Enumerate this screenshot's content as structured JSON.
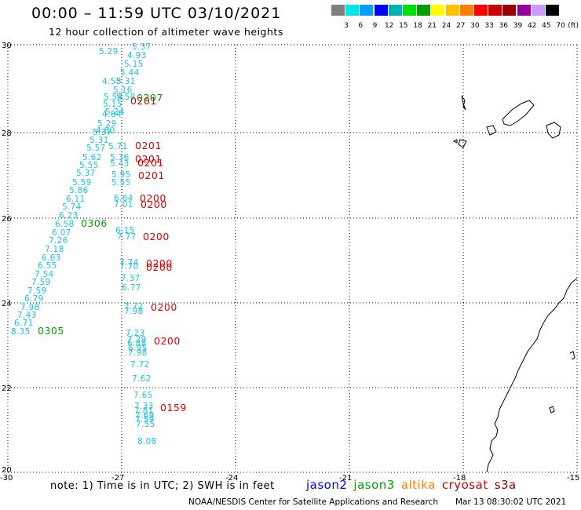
{
  "header": {
    "title": "00:00 – 11:59 UTC 03/10/2021",
    "subtitle": "12 hour collection of altimeter wave heights"
  },
  "colorbar": {
    "labels": [
      "3",
      "6",
      "9",
      "12",
      "15",
      "18",
      "21",
      "24",
      "27",
      "30",
      "33",
      "36",
      "39",
      "42",
      "45",
      "70",
      "(ft)"
    ],
    "colors": [
      "#7f7f7f",
      "#00e5e5",
      "#00a2ff",
      "#0000ff",
      "#00b3b3",
      "#00e000",
      "#00a000",
      "#ffff00",
      "#ffc000",
      "#ff8000",
      "#ff0000",
      "#cc0000",
      "#990000",
      "#990099",
      "#cc99ff",
      "#000000"
    ]
  },
  "map": {
    "lon_range": [
      -30,
      -15
    ],
    "lat_range": [
      20,
      30
    ],
    "x_ticks": [
      "-30",
      "-27",
      "-24",
      "-21",
      "-18",
      "-15"
    ],
    "y_ticks": [
      "20",
      "22",
      "24",
      "26",
      "28",
      "30"
    ]
  },
  "wave_heights": {
    "left_track": [
      "5.37",
      "5.29",
      "4.93",
      "5.15",
      "5.44",
      "4.58",
      "5.31",
      "5.16",
      "5.54",
      "5.58",
      "5.15",
      "5.24",
      "4.84",
      "5.29",
      "4.80",
      "5.37",
      "5.31",
      "5.57",
      "5.62",
      "5.55",
      "5.37",
      "5.59",
      "5.86",
      "6.11",
      "5.74",
      "6.23",
      "6.58",
      "6.07",
      "7.26",
      "7.18",
      "6.63",
      "6.55",
      "7.54",
      "7.59",
      "7.59",
      "6.79",
      "7.98",
      "7.43",
      "6.71",
      "8.35"
    ],
    "right_track": [
      "5.71",
      "5.36",
      "5.43",
      "5.95",
      "5.55",
      "6.64",
      "7.01",
      "6.15",
      "7.77",
      "7.74",
      "7.70",
      "7.37",
      "6.77",
      "7.72",
      "7.98",
      "7.23",
      "7.29",
      "6.88",
      "6.95",
      "7.98",
      "7.72",
      "7.62",
      "7.65",
      "7.33",
      "7.81",
      "7.69",
      "7.59",
      "7.55",
      "8.08"
    ]
  },
  "time_labels": {
    "red": [
      "0201",
      "0201",
      "0201",
      "0201",
      "0201",
      "0200",
      "0200",
      "0200",
      "0200",
      "0200",
      "0200",
      "0200",
      "0159"
    ],
    "green": [
      "0207",
      "0306",
      "0305"
    ]
  },
  "footer": {
    "note": "note: 1) Time is in UTC; 2) SWH is in feet",
    "satellites": [
      {
        "name": "jason2",
        "color": "#0000ff"
      },
      {
        "name": "jason3",
        "color": "#00a000"
      },
      {
        "name": "altika",
        "color": "#ff8000"
      },
      {
        "name": "cryosat",
        "color": "#cc0000"
      },
      {
        "name": "s3a",
        "color": "#990000"
      }
    ],
    "credit": "NOAA/NESDIS Center for Satellite Applications and Research",
    "timestamp": "Mar 13 08:30:02 UTC 2021"
  }
}
